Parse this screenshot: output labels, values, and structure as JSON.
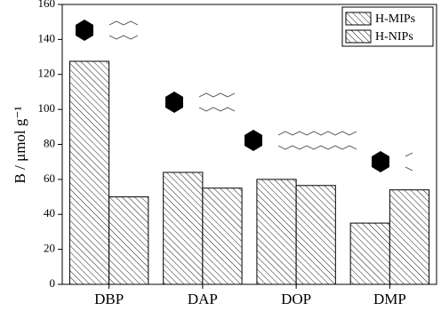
{
  "chart_data": {
    "type": "bar",
    "ylabel": "B / μmol g⁻¹",
    "categories": [
      "DBP",
      "DAP",
      "DOP",
      "DMP"
    ],
    "series": [
      {
        "name": "H-MIPs",
        "color": "#000000",
        "values": [
          127.5,
          64,
          60,
          35
        ]
      },
      {
        "name": "H-NIPs",
        "color": "#000000",
        "values": [
          50,
          55,
          56.5,
          54
        ]
      }
    ],
    "ylim": [
      0,
      160
    ],
    "yticks": [
      0,
      20,
      40,
      60,
      80,
      100,
      120,
      140,
      160
    ],
    "legend": "upper-right"
  }
}
